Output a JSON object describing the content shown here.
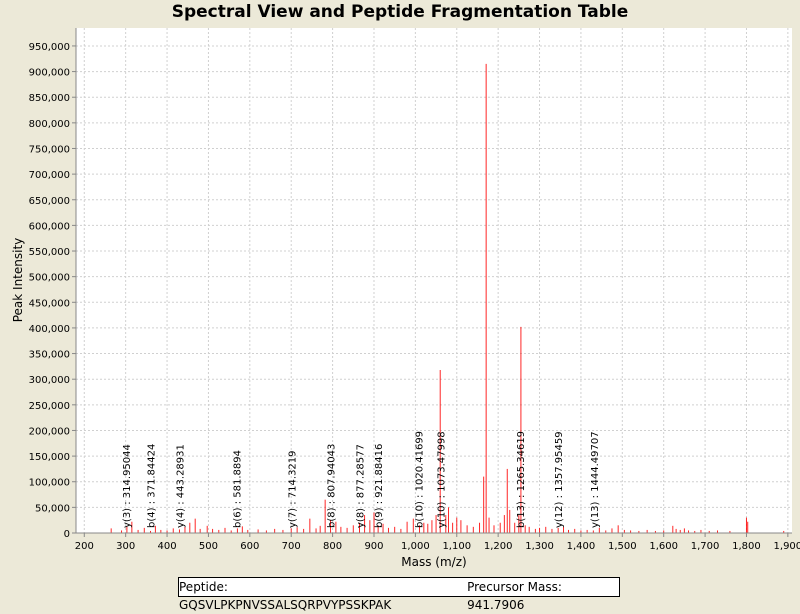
{
  "chart_data": {
    "type": "bar",
    "title": "Spectral View and Peptide Fragmentation Table",
    "xlabel": "Mass (m/z)",
    "ylabel": "Peak Intensity",
    "xlim": [
      180,
      1910
    ],
    "ylim": [
      0,
      985000
    ],
    "xticks": [
      200,
      300,
      400,
      500,
      600,
      700,
      800,
      900,
      1000,
      1100,
      1200,
      1300,
      1400,
      1500,
      1600,
      1700,
      1800,
      1900
    ],
    "yticks": [
      0,
      50000,
      100000,
      150000,
      200000,
      250000,
      300000,
      350000,
      400000,
      450000,
      500000,
      550000,
      600000,
      650000,
      700000,
      750000,
      800000,
      850000,
      900000,
      950000
    ],
    "grid": true,
    "peak_color": "#ff0000",
    "peaks": [
      [
        265,
        9000
      ],
      [
        290,
        5000
      ],
      [
        303,
        12000
      ],
      [
        314.95,
        22000
      ],
      [
        330,
        6000
      ],
      [
        345,
        10000
      ],
      [
        360,
        4000
      ],
      [
        371.84,
        14000
      ],
      [
        385,
        6000
      ],
      [
        400,
        5000
      ],
      [
        415,
        9000
      ],
      [
        430,
        7000
      ],
      [
        443.29,
        12000
      ],
      [
        455,
        20000
      ],
      [
        468,
        28000
      ],
      [
        480,
        8000
      ],
      [
        497,
        14000
      ],
      [
        510,
        8000
      ],
      [
        525,
        6000
      ],
      [
        540,
        10000
      ],
      [
        555,
        5000
      ],
      [
        570,
        9000
      ],
      [
        581.89,
        13000
      ],
      [
        595,
        6000
      ],
      [
        620,
        7000
      ],
      [
        640,
        5000
      ],
      [
        660,
        8000
      ],
      [
        680,
        6000
      ],
      [
        700,
        9000
      ],
      [
        714.32,
        11000
      ],
      [
        730,
        8000
      ],
      [
        745,
        28000
      ],
      [
        760,
        9000
      ],
      [
        770,
        14000
      ],
      [
        782,
        65000
      ],
      [
        795,
        25000
      ],
      [
        807.94,
        22000
      ],
      [
        820,
        12000
      ],
      [
        835,
        10000
      ],
      [
        850,
        15000
      ],
      [
        865,
        20000
      ],
      [
        877.29,
        35000
      ],
      [
        890,
        25000
      ],
      [
        900,
        40000
      ],
      [
        910,
        15000
      ],
      [
        921.88,
        18000
      ],
      [
        935,
        10000
      ],
      [
        950,
        12000
      ],
      [
        965,
        8000
      ],
      [
        980,
        22000
      ],
      [
        995,
        28000
      ],
      [
        1010,
        15000
      ],
      [
        1020.42,
        20000
      ],
      [
        1030,
        18000
      ],
      [
        1040,
        25000
      ],
      [
        1050,
        35000
      ],
      [
        1060,
        318000
      ],
      [
        1073.48,
        35000
      ],
      [
        1080,
        50000
      ],
      [
        1090,
        20000
      ],
      [
        1100,
        30000
      ],
      [
        1110,
        25000
      ],
      [
        1125,
        15000
      ],
      [
        1140,
        12000
      ],
      [
        1155,
        20000
      ],
      [
        1165,
        110000
      ],
      [
        1171,
        915000
      ],
      [
        1178,
        30000
      ],
      [
        1190,
        15000
      ],
      [
        1205,
        20000
      ],
      [
        1215,
        35000
      ],
      [
        1222,
        125000
      ],
      [
        1228,
        45000
      ],
      [
        1240,
        20000
      ],
      [
        1250,
        35000
      ],
      [
        1255,
        402000
      ],
      [
        1265.35,
        15000
      ],
      [
        1275,
        12000
      ],
      [
        1290,
        8000
      ],
      [
        1300,
        10000
      ],
      [
        1315,
        12000
      ],
      [
        1330,
        8000
      ],
      [
        1345,
        10000
      ],
      [
        1357.95,
        12000
      ],
      [
        1370,
        6000
      ],
      [
        1385,
        8000
      ],
      [
        1400,
        5000
      ],
      [
        1415,
        6000
      ],
      [
        1430,
        5000
      ],
      [
        1444.5,
        10000
      ],
      [
        1460,
        5000
      ],
      [
        1475,
        9000
      ],
      [
        1490,
        15000
      ],
      [
        1505,
        6000
      ],
      [
        1520,
        5000
      ],
      [
        1540,
        4000
      ],
      [
        1560,
        6000
      ],
      [
        1580,
        4000
      ],
      [
        1600,
        5000
      ],
      [
        1622,
        14000
      ],
      [
        1630,
        8000
      ],
      [
        1640,
        6000
      ],
      [
        1650,
        9000
      ],
      [
        1660,
        5000
      ],
      [
        1675,
        4000
      ],
      [
        1690,
        6000
      ],
      [
        1710,
        4000
      ],
      [
        1730,
        5000
      ],
      [
        1760,
        4000
      ],
      [
        1800,
        30000
      ],
      [
        1803,
        22000
      ],
      [
        1890,
        4000
      ]
    ],
    "annotations": [
      {
        "mz": 303,
        "label": "y(3) : 314.95044"
      },
      {
        "mz": 362,
        "label": "b(4) : 371.84424"
      },
      {
        "mz": 433,
        "label": "y(4) : 443.28931"
      },
      {
        "mz": 570,
        "label": "b(6) : 581.8894"
      },
      {
        "mz": 703,
        "label": "y(7) : 714.3219"
      },
      {
        "mz": 797,
        "label": "b(8) : 807.94043"
      },
      {
        "mz": 867,
        "label": "y(8) : 877.28577"
      },
      {
        "mz": 912,
        "label": "b(9) : 921.88416"
      },
      {
        "mz": 1010,
        "label": "b(10) : 1020.41699"
      },
      {
        "mz": 1063,
        "label": "y(10) : 1073.47998"
      },
      {
        "mz": 1255,
        "label": "b(13) : 1265.34619"
      },
      {
        "mz": 1347,
        "label": "y(12) : 1357.95459"
      },
      {
        "mz": 1434,
        "label": "y(13) : 1444.49707"
      }
    ]
  },
  "footer": {
    "peptide": "Peptide: GQSVLPKPNVSSALSQRPVYPSSKPAK",
    "precursor": "Precursor Mass: 941.7906"
  }
}
